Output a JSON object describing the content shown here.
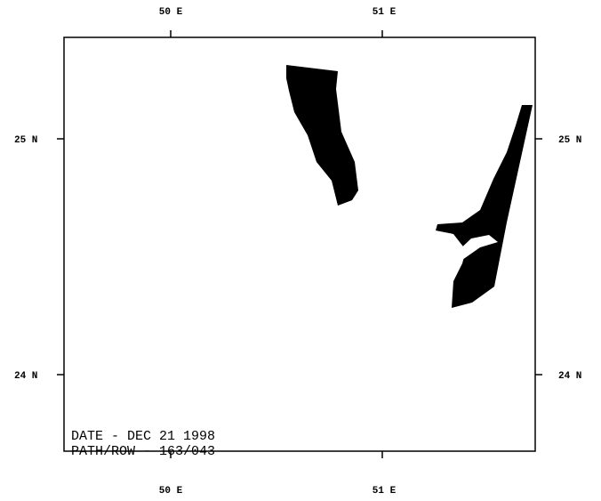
{
  "axes": {
    "top": [
      "50 E",
      "51 E"
    ],
    "bottom": [
      "50 E",
      "51 E"
    ],
    "left": [
      "25 N",
      "24 N"
    ],
    "right": [
      "25 N",
      "24 N"
    ]
  },
  "annotation": {
    "date": "DATE - DEC 21 1998",
    "path_row": "PATH/ROW - 163/043"
  }
}
